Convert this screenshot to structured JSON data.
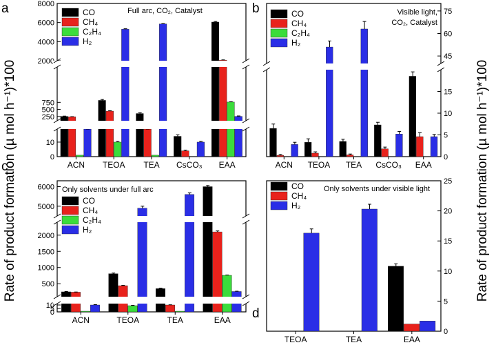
{
  "figure": {
    "ylabel": "Rate of product formation (µ mol h⁻¹)*100",
    "colors": {
      "CO": "#000000",
      "CH4": "#e8221c",
      "C2H4": "#3bdc3b",
      "H2": "#2a2ee6"
    }
  },
  "chart_data": [
    {
      "panel": "a",
      "type": "bar",
      "title": "Full arc, CO₂, Catalyst",
      "categories": [
        "ACN",
        "TEOA",
        "TEA",
        "CsCO₃",
        "EAA"
      ],
      "legend": [
        "CO",
        "CH₄",
        "C₂H₄",
        "H₂"
      ],
      "series": [
        {
          "name": "CO",
          "key": "CO",
          "values": [
            255,
            820,
            355,
            14,
            6050
          ]
        },
        {
          "name": "CH₄",
          "key": "CH4",
          "values": [
            240,
            440,
            45,
            4,
            2060
          ]
        },
        {
          "name": "C₂H₄",
          "key": "C2H4",
          "values": [
            1,
            10,
            1,
            null,
            760
          ]
        },
        {
          "name": "H₂",
          "key": "H2",
          "values": [
            60,
            5300,
            5850,
            10,
            255
          ]
        }
      ],
      "errors": {
        "CO": [
          10,
          30,
          25,
          1,
          60
        ],
        "CH4": [
          5,
          15,
          5,
          0.5,
          30
        ],
        "C2H4": [
          0,
          0.5,
          0,
          null,
          10
        ],
        "H2": [
          5,
          50,
          40,
          0.5,
          15
        ]
      },
      "yaxis_segments": [
        {
          "ylim": [
            0,
            19
          ],
          "ticks": [
            "0",
            "10"
          ],
          "tick_values": [
            0,
            10
          ]
        },
        {
          "ylim": [
            100,
            2000
          ],
          "ticks": [
            "250",
            "500",
            "750",
            "2000"
          ],
          "tick_values": [
            250,
            500,
            750,
            2000
          ]
        },
        {
          "ylim": [
            2000,
            8000
          ],
          "ticks": [
            "2000",
            "4000",
            "6000",
            "8000"
          ],
          "tick_values": [
            2000,
            4000,
            6000,
            8000
          ]
        }
      ]
    },
    {
      "panel": "b",
      "type": "bar",
      "title_lines": [
        "Visible light,",
        "CO₂, Catalyst"
      ],
      "categories": [
        "ACN",
        "TEOA",
        "TEA",
        "CsCO₃",
        "EAA"
      ],
      "legend": [
        "CO",
        "CH₄",
        "C₂H₄",
        "H₂"
      ],
      "series": [
        {
          "name": "CO",
          "key": "CO",
          "values": [
            6.5,
            3.3,
            3.5,
            7.3,
            18.5
          ]
        },
        {
          "name": "CH₄",
          "key": "CH4",
          "values": [
            0.3,
            0.8,
            0.4,
            1.8,
            4.6
          ]
        },
        {
          "name": "C₂H₄",
          "key": "C2H4",
          "values": [
            null,
            null,
            null,
            null,
            null
          ]
        },
        {
          "name": "H₂",
          "key": "H2",
          "values": [
            2.8,
            51,
            63,
            5.2,
            4.6
          ]
        }
      ],
      "errors": {
        "CO": [
          1.0,
          0.8,
          0.5,
          0.6,
          1.0
        ],
        "CH4": [
          0.2,
          0.3,
          0.2,
          0.4,
          0.9
        ],
        "C2H4": [
          null,
          null,
          null,
          null,
          null
        ],
        "H2": [
          0.5,
          4,
          5,
          0.6,
          0.5
        ]
      },
      "yaxis_segments": [
        {
          "ylim": [
            0,
            20
          ],
          "ticks": [
            "0",
            "5",
            "10",
            "15"
          ],
          "tick_values": [
            0,
            5,
            10,
            15
          ]
        },
        {
          "ylim": [
            40,
            80
          ],
          "ticks": [
            "45",
            "60",
            "75"
          ],
          "tick_values": [
            45,
            60,
            75
          ]
        }
      ]
    },
    {
      "panel": "c",
      "type": "bar",
      "title": "Only solvents under full arc",
      "categories": [
        "ACN",
        "TEOA",
        "TEA",
        "EAA"
      ],
      "legend": [
        "CO",
        "CH₄",
        "C₂H₄",
        "H₂"
      ],
      "series": [
        {
          "name": "CO",
          "key": "CO",
          "values": [
            250,
            810,
            350,
            6000
          ]
        },
        {
          "name": "CH₄",
          "key": "CH4",
          "values": [
            240,
            440,
            10,
            2100
          ]
        },
        {
          "name": "C₂H₄",
          "key": "C2H4",
          "values": [
            1,
            9,
            1,
            760
          ]
        },
        {
          "name": "H₂",
          "key": "H2",
          "values": [
            10,
            4900,
            5600,
            260
          ]
        }
      ],
      "errors": {
        "CO": [
          10,
          20,
          15,
          60
        ],
        "CH4": [
          5,
          10,
          0.3,
          30
        ],
        "C2H4": [
          0,
          0.5,
          0,
          10
        ],
        "H2": [
          0.5,
          100,
          80,
          10
        ]
      },
      "yaxis_segments": [
        {
          "ylim": [
            0,
            12
          ],
          "ticks": [
            "0",
            "5",
            "10"
          ],
          "tick_values": [
            0,
            5,
            10
          ]
        },
        {
          "ylim": [
            100,
            2400
          ],
          "ticks": [
            "500",
            "1000",
            "1500",
            "2000"
          ],
          "tick_values": [
            500,
            1000,
            1500,
            2000
          ]
        },
        {
          "ylim": [
            4500,
            6300
          ],
          "ticks": [
            "5000",
            "6000"
          ],
          "tick_values": [
            5000,
            6000
          ]
        }
      ]
    },
    {
      "panel": "d",
      "type": "bar",
      "title": "Only solvents under visible light",
      "categories": [
        "TEOA",
        "TEA",
        "EAA"
      ],
      "legend": [
        "CO",
        "CH₄",
        "H₂"
      ],
      "series": [
        {
          "name": "CO",
          "key": "CO",
          "values": [
            null,
            null,
            10.8
          ]
        },
        {
          "name": "CH₄",
          "key": "CH4",
          "values": [
            null,
            null,
            1.2
          ]
        },
        {
          "name": "H₂",
          "key": "H2",
          "values": [
            16.3,
            20.3,
            1.7
          ]
        }
      ],
      "errors": {
        "CO": [
          null,
          null,
          0.4
        ],
        "CH4": [
          null,
          null,
          0
        ],
        "H2": [
          0.7,
          0.8,
          0
        ]
      },
      "ylim": [
        0,
        25
      ],
      "yticks": [
        "0",
        "5",
        "10",
        "15",
        "20",
        "25"
      ],
      "ytick_values": [
        0,
        5,
        10,
        15,
        20,
        25
      ]
    }
  ]
}
